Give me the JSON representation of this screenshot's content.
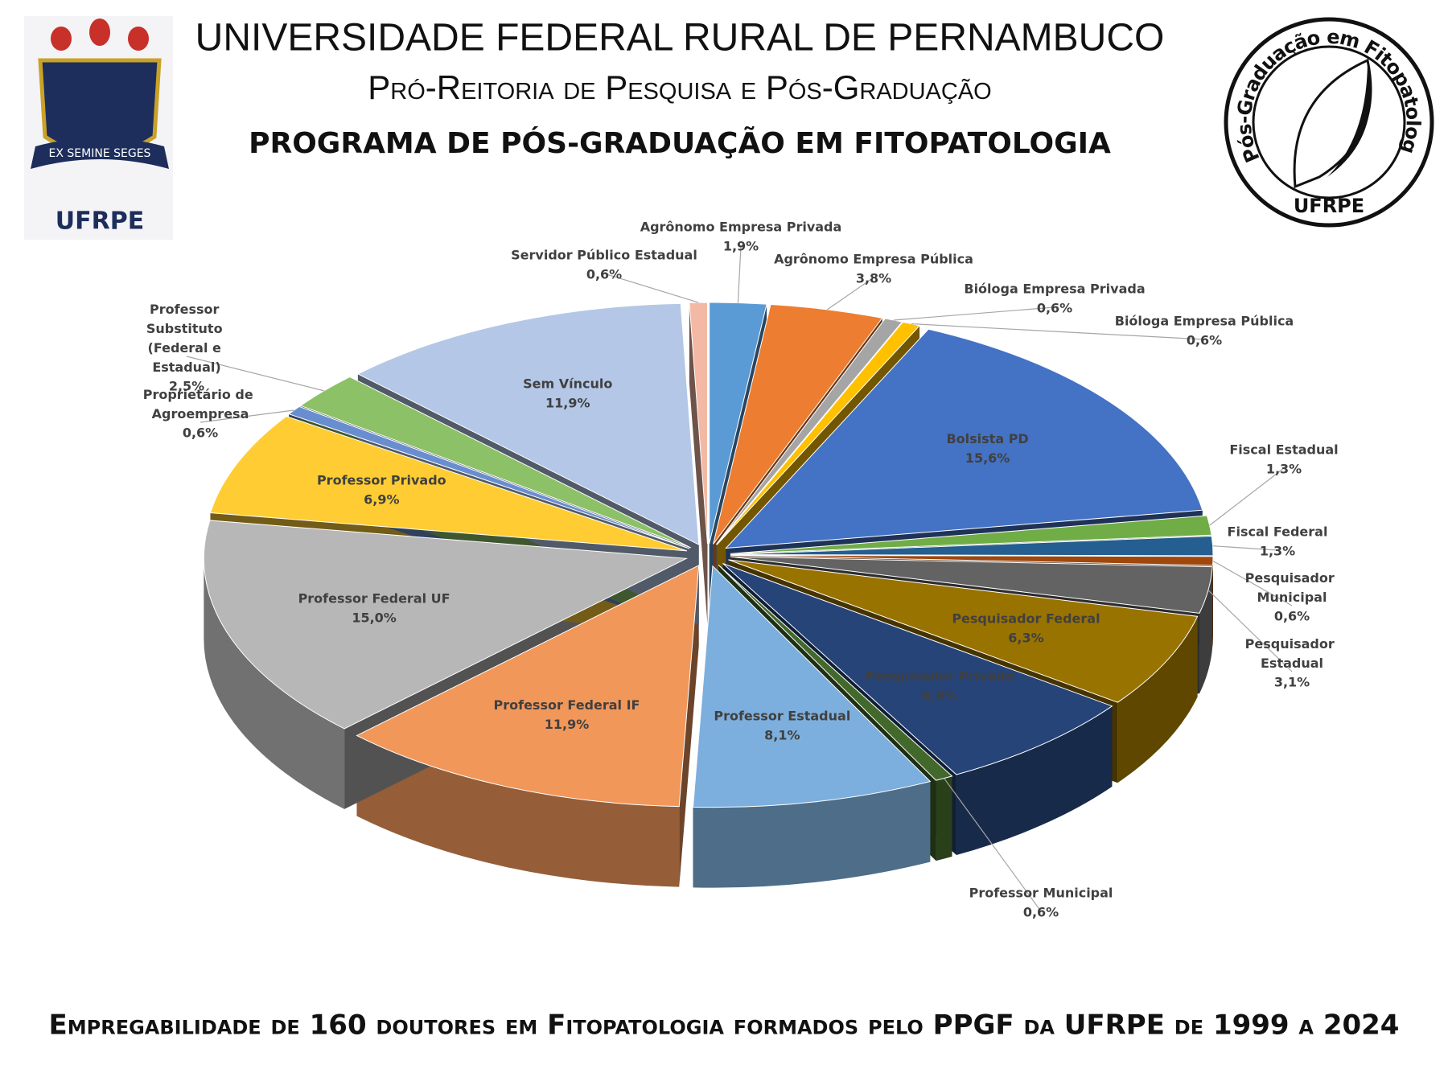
{
  "header": {
    "university": "UNIVERSIDADE FEDERAL RURAL DE PERNAMBUCO",
    "dean_office": "Pró-Reitoria de Pesquisa e Pós-Graduação",
    "program": "PROGRAMA DE PÓS-GRADUAÇÃO EM FITOPATOLOGIA",
    "logo_left": {
      "motto": "EX SEMINE SEGES",
      "name": "UFRPE"
    },
    "logo_right": {
      "ring_text": "Pós-Graduação em Fitopatologia",
      "name": "UFRPE"
    }
  },
  "chart_data": {
    "type": "pie",
    "title": "Empregabilidade de 160 doutores em Fitopatologia formados pelo PPGF da UFRPE de 1999 a 2024",
    "categories": [
      "Agrônomo Empresa Privada",
      "Agrônomo Empresa Pública",
      "Bióloga Empresa Privada",
      "Bióloga Empresa Pública",
      "Bolsista PD",
      "Fiscal Estadual",
      "Fiscal Federal",
      "Pesquisador Municipal",
      "Pesquisador Estadual",
      "Pesquisador Federal",
      "Pesquisador Privado",
      "Professor Municipal",
      "Professor Estadual",
      "Professor Federal IF",
      "Professor Federal UF",
      "Professor Privado",
      "Proprietário de Agroempresa",
      "Professor Substituto (Federal e Estadual)",
      "Sem Vínculo",
      "Servidor Público Estadual"
    ],
    "values": [
      1.9,
      3.8,
      0.6,
      0.6,
      15.6,
      1.3,
      1.3,
      0.6,
      3.1,
      6.3,
      6.9,
      0.6,
      8.1,
      11.9,
      15.0,
      6.9,
      0.6,
      2.5,
      11.9,
      0.6
    ],
    "value_labels": [
      "1,9%",
      "3,8%",
      "0,6%",
      "0,6%",
      "15,6%",
      "1,3%",
      "1,3%",
      "0,6%",
      "3,1%",
      "6,3%",
      "6,9%",
      "0,6%",
      "8,1%",
      "11,9%",
      "15,0%",
      "6,9%",
      "0,6%",
      "2,5%",
      "11,9%",
      "0,6%"
    ],
    "colors": [
      "#5b9bd5",
      "#ed7d31",
      "#a5a5a5",
      "#ffc000",
      "#4472c4",
      "#70ad47",
      "#255e91",
      "#9e480e",
      "#636363",
      "#997300",
      "#264478",
      "#43682b",
      "#7cafdd",
      "#f1975a",
      "#b7b7b7",
      "#ffcd33",
      "#698ed0",
      "#8cc168",
      "#b4c7e7",
      "#f4b9a5"
    ]
  }
}
